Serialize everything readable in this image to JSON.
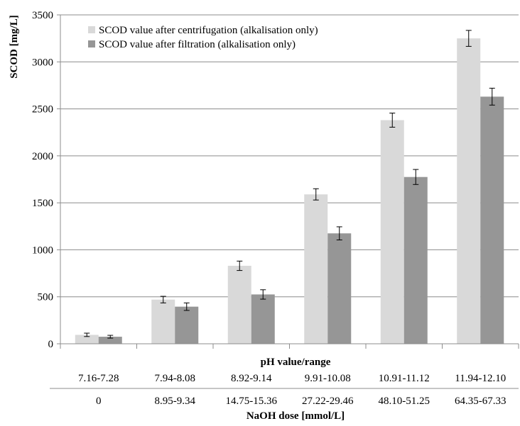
{
  "chart_data": {
    "type": "bar",
    "ylabel": "SCOD [mg/L]",
    "ylim": [
      0,
      3500
    ],
    "yticks": [
      0,
      500,
      1000,
      1500,
      2000,
      2500,
      3000,
      3500
    ],
    "grid": true,
    "legend_position": "top-left",
    "categories": [
      "7.16-7.28",
      "7.94-8.08",
      "8.92-9.14",
      "9.91-10.08",
      "10.91-11.12",
      "11.94-12.10"
    ],
    "category_axis_title": "pH value/range",
    "secondary_categories": [
      "0",
      "8.95-9.34",
      "14.75-15.36",
      "27.22-29.46",
      "48.10-51.25",
      "64.35-67.33"
    ],
    "secondary_axis_title": "NaOH dose [mmol/L]",
    "series": [
      {
        "name": "SCOD value after centrifugation (alkalisation only)",
        "color": "#d9d9d9",
        "values": [
          95,
          470,
          830,
          1590,
          2380,
          3250
        ],
        "errors": [
          18,
          35,
          50,
          60,
          75,
          85
        ]
      },
      {
        "name": "SCOD value after filtration (alkalisation only)",
        "color": "#969696",
        "values": [
          75,
          395,
          525,
          1175,
          1775,
          2630
        ],
        "errors": [
          15,
          40,
          50,
          70,
          80,
          90
        ]
      }
    ]
  }
}
